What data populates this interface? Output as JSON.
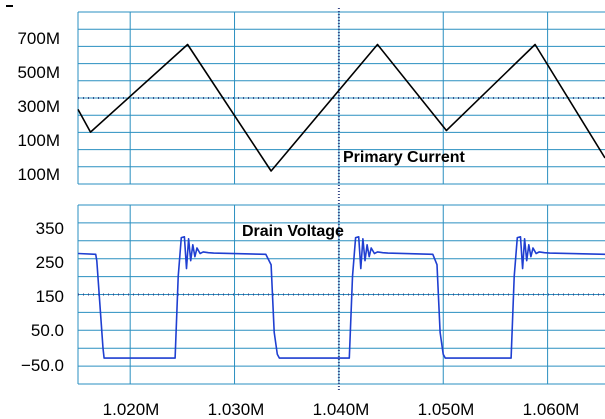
{
  "chart_data": [
    {
      "type": "line",
      "panel": "top",
      "xlim": [
        1.015,
        1.0655
      ],
      "ytick_labels": [
        "700M",
        "500M",
        "300M",
        "100M",
        "100M"
      ],
      "annotation": "Primary Current",
      "series": [
        {
          "color": "#000000",
          "x": [
            1.015,
            1.0162,
            1.0255,
            1.0335,
            1.0437,
            1.0503,
            1.0588,
            1.0655
          ],
          "y": [
            0.2,
            0.06,
            0.6,
            -0.18,
            0.6,
            0.07,
            0.6,
            -0.1
          ]
        }
      ]
    },
    {
      "type": "line",
      "panel": "bottom",
      "xlim": [
        1.015,
        1.0655
      ],
      "ytick_labels": [
        "350",
        "250",
        "150",
        "50.0",
        "−50.0"
      ],
      "xtick_labels": [
        "1.020M",
        "1.030M",
        "1.040M",
        "1.050M",
        "1.060M"
      ],
      "annotation": "Drain Voltage",
      "series": [
        {
          "color": "#1f3fd1",
          "x": [
            1.015,
            1.0167,
            1.0168,
            1.0174,
            1.0175,
            1.0243,
            1.0246,
            1.0249,
            1.0252,
            1.0254,
            1.0256,
            1.0258,
            1.026,
            1.0262,
            1.0264,
            1.0267,
            1.027,
            1.0275,
            1.028,
            1.033,
            1.0335,
            1.0338,
            1.0341,
            1.0343,
            1.041,
            1.0413,
            1.0416,
            1.0419,
            1.0421,
            1.0423,
            1.0425,
            1.0427,
            1.0429,
            1.0431,
            1.0434,
            1.0437,
            1.0442,
            1.0447,
            1.049,
            1.0494,
            1.0497,
            1.05,
            1.0502,
            1.0565,
            1.0568,
            1.0571,
            1.0574,
            1.0576,
            1.0578,
            1.058,
            1.0582,
            1.0584,
            1.0586,
            1.0589,
            1.0592,
            1.0597,
            1.0602,
            1.0655
          ],
          "y": [
            258,
            256,
            240,
            20,
            -5,
            -5,
            200,
            298,
            300,
            220,
            295,
            240,
            280,
            250,
            272,
            258,
            262,
            260,
            259,
            256,
            230,
            60,
            5,
            -5,
            -5,
            200,
            298,
            300,
            220,
            295,
            240,
            280,
            250,
            272,
            258,
            262,
            260,
            259,
            256,
            230,
            60,
            5,
            -5,
            -5,
            200,
            298,
            300,
            220,
            295,
            240,
            280,
            250,
            272,
            258,
            262,
            260,
            259,
            256
          ]
        }
      ]
    }
  ]
}
